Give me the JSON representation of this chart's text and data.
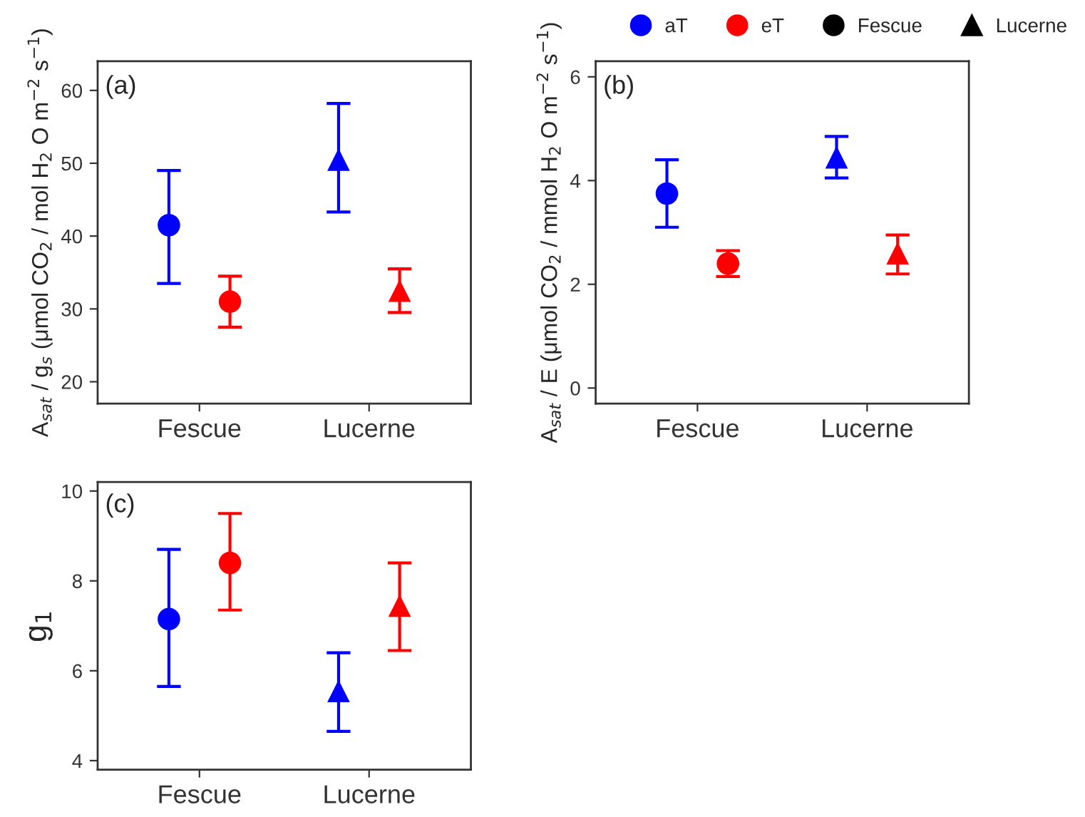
{
  "chart_data": [
    {
      "type": "scatter",
      "annotations": [
        "(a)"
      ],
      "ylabel": "A$_{sat}$ / g$_{s}$ (μmol CO$_{2}$ / mol H$_{2}$ O m$^{−2}$ s$^{−1}$)",
      "categories": [
        "Fescue",
        "Lucerne"
      ],
      "ylim": [
        17,
        64
      ],
      "yticks": [
        20,
        30,
        40,
        50,
        60
      ],
      "grid": false,
      "legend": "top right",
      "marker": [
        "circle",
        "triangle"
      ],
      "series": [
        {
          "name": "aT",
          "color": "#0000ff",
          "values": [
            41.5,
            50.5
          ],
          "errors": [
            [
              33.5,
              49.0
            ],
            [
              43.3,
              58.2
            ]
          ]
        },
        {
          "name": "eT",
          "color": "#ff0000",
          "values": [
            31.0,
            32.5
          ],
          "errors": [
            [
              27.5,
              34.5
            ],
            [
              29.5,
              35.5
            ]
          ]
        }
      ]
    },
    {
      "type": "scatter",
      "annotations": [
        "(b)"
      ],
      "ylabel": "A$_{sat}$ / E (μmol CO$_{2}$ / mmol H$_{2}$ O m$^{−2}$ s$^{−1}$)",
      "categories": [
        "Fescue",
        "Lucerne"
      ],
      "ylim": [
        -0.3,
        6.3
      ],
      "yticks": [
        0,
        2,
        4,
        6
      ],
      "grid": false,
      "marker": [
        "circle",
        "triangle"
      ],
      "series": [
        {
          "color": "#0000ff",
          "values": [
            3.75,
            4.45
          ],
          "errors": [
            [
              3.1,
              4.4
            ],
            [
              4.05,
              4.85
            ]
          ]
        },
        {
          "color": "#ff0000",
          "values": [
            2.4,
            2.6
          ],
          "errors": [
            [
              2.15,
              2.65
            ],
            [
              2.2,
              2.95
            ]
          ]
        }
      ]
    },
    {
      "type": "scatter",
      "annotations": [
        "(c)"
      ],
      "ylabel": "g$_{1}$",
      "categories": [
        "Fescue",
        "Lucerne"
      ],
      "ylim": [
        3.8,
        10.2
      ],
      "yticks": [
        4,
        6,
        8,
        10
      ],
      "grid": false,
      "legend": false,
      "marker": [
        "circle",
        "triangle"
      ],
      "series": [
        {
          "color": "#0000ff",
          "values": [
            7.15,
            5.55
          ],
          "errors": [
            [
              5.65,
              8.7
            ],
            [
              4.65,
              6.4
            ]
          ]
        },
        {
          "color": "#ff0000",
          "values": [
            8.4,
            7.45
          ],
          "errors": [
            [
              7.35,
              9.5
            ],
            [
              6.45,
              8.4
            ]
          ]
        }
      ]
    }
  ]
}
